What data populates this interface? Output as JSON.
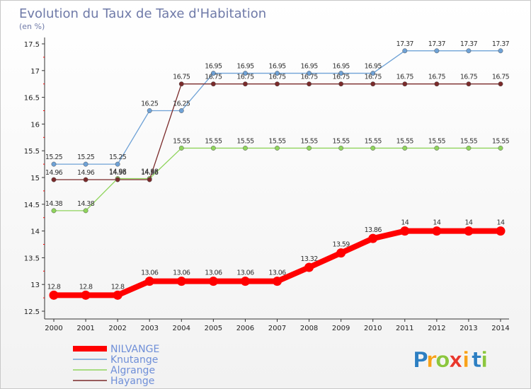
{
  "chart_data": {
    "type": "line",
    "title": "Evolution du Taux de Taxe d'Habitation",
    "subtitle": "(en %)",
    "x": [
      "2000",
      "2001",
      "2002",
      "2003",
      "2004",
      "2005",
      "2006",
      "2007",
      "2008",
      "2009",
      "2010",
      "2011",
      "2012",
      "2013",
      "2014"
    ],
    "ylim": [
      12.5,
      17.5
    ],
    "yticks": [
      "12.5",
      "13",
      "13.5",
      "14",
      "14.5",
      "15",
      "15.5",
      "16",
      "16.5",
      "17",
      "17.5"
    ],
    "grid": false,
    "legend_position": "bottom-left",
    "series": [
      {
        "name": "NILVANGE",
        "color": "#ff0000",
        "values": [
          12.8,
          12.8,
          12.8,
          13.06,
          13.06,
          13.06,
          13.06,
          13.06,
          13.32,
          13.59,
          13.86,
          14,
          14,
          14,
          14
        ],
        "labels": [
          "12.8",
          "12.8",
          "12.8",
          "13.06",
          "13.06",
          "13.06",
          "13.06",
          "13.06",
          "13.32",
          "13.59",
          "13.86",
          "14",
          "14",
          "14",
          "14"
        ]
      },
      {
        "name": "Knutange",
        "color": "#6fa2d6",
        "values": [
          15.25,
          15.25,
          15.25,
          16.25,
          16.25,
          16.95,
          16.95,
          16.95,
          16.95,
          16.95,
          16.95,
          17.37,
          17.37,
          17.37,
          17.37
        ],
        "labels": [
          "15.25",
          "15.25",
          "15.25",
          "16.25",
          "16.25",
          "16.95",
          "16.95",
          "16.95",
          "16.95",
          "16.95",
          "16.95",
          "17.37",
          "17.37",
          "17.37",
          "17.37"
        ]
      },
      {
        "name": "Algrange",
        "color": "#8fd45c",
        "values": [
          14.38,
          14.38,
          14.98,
          14.98,
          15.55,
          15.55,
          15.55,
          15.55,
          15.55,
          15.55,
          15.55,
          15.55,
          15.55,
          15.55,
          15.55
        ],
        "labels": [
          "14.38",
          "14.38",
          "14.98",
          "14.98",
          "15.55",
          "15.55",
          "15.55",
          "15.55",
          "15.55",
          "15.55",
          "15.55",
          "15.55",
          "15.55",
          "15.55",
          "15.55"
        ]
      },
      {
        "name": "Hayange",
        "color": "#7a2a2a",
        "values": [
          14.96,
          14.96,
          14.96,
          14.96,
          16.75,
          16.75,
          16.75,
          16.75,
          16.75,
          16.75,
          16.75,
          16.75,
          16.75,
          16.75,
          16.75
        ],
        "labels": [
          "14.96",
          "14.96",
          "14.96",
          "14.96",
          "16.75",
          "16.75",
          "16.75",
          "16.75",
          "16.75",
          "16.75",
          "16.75",
          "16.75",
          "16.75",
          "16.75",
          "16.75"
        ]
      }
    ]
  },
  "logo": {
    "text": "Proxiti",
    "letters": [
      {
        "ch": "P",
        "color": "#2d7fc2"
      },
      {
        "ch": "r",
        "color": "#f7a21b"
      },
      {
        "ch": "o",
        "color": "#8cc63f"
      },
      {
        "ch": "x",
        "color": "#e8372c"
      },
      {
        "ch": "i",
        "color": "#f7a21b"
      },
      {
        "ch": "t",
        "color": "#2d7fc2"
      },
      {
        "ch": "i",
        "color": "#8cc63f"
      }
    ]
  }
}
